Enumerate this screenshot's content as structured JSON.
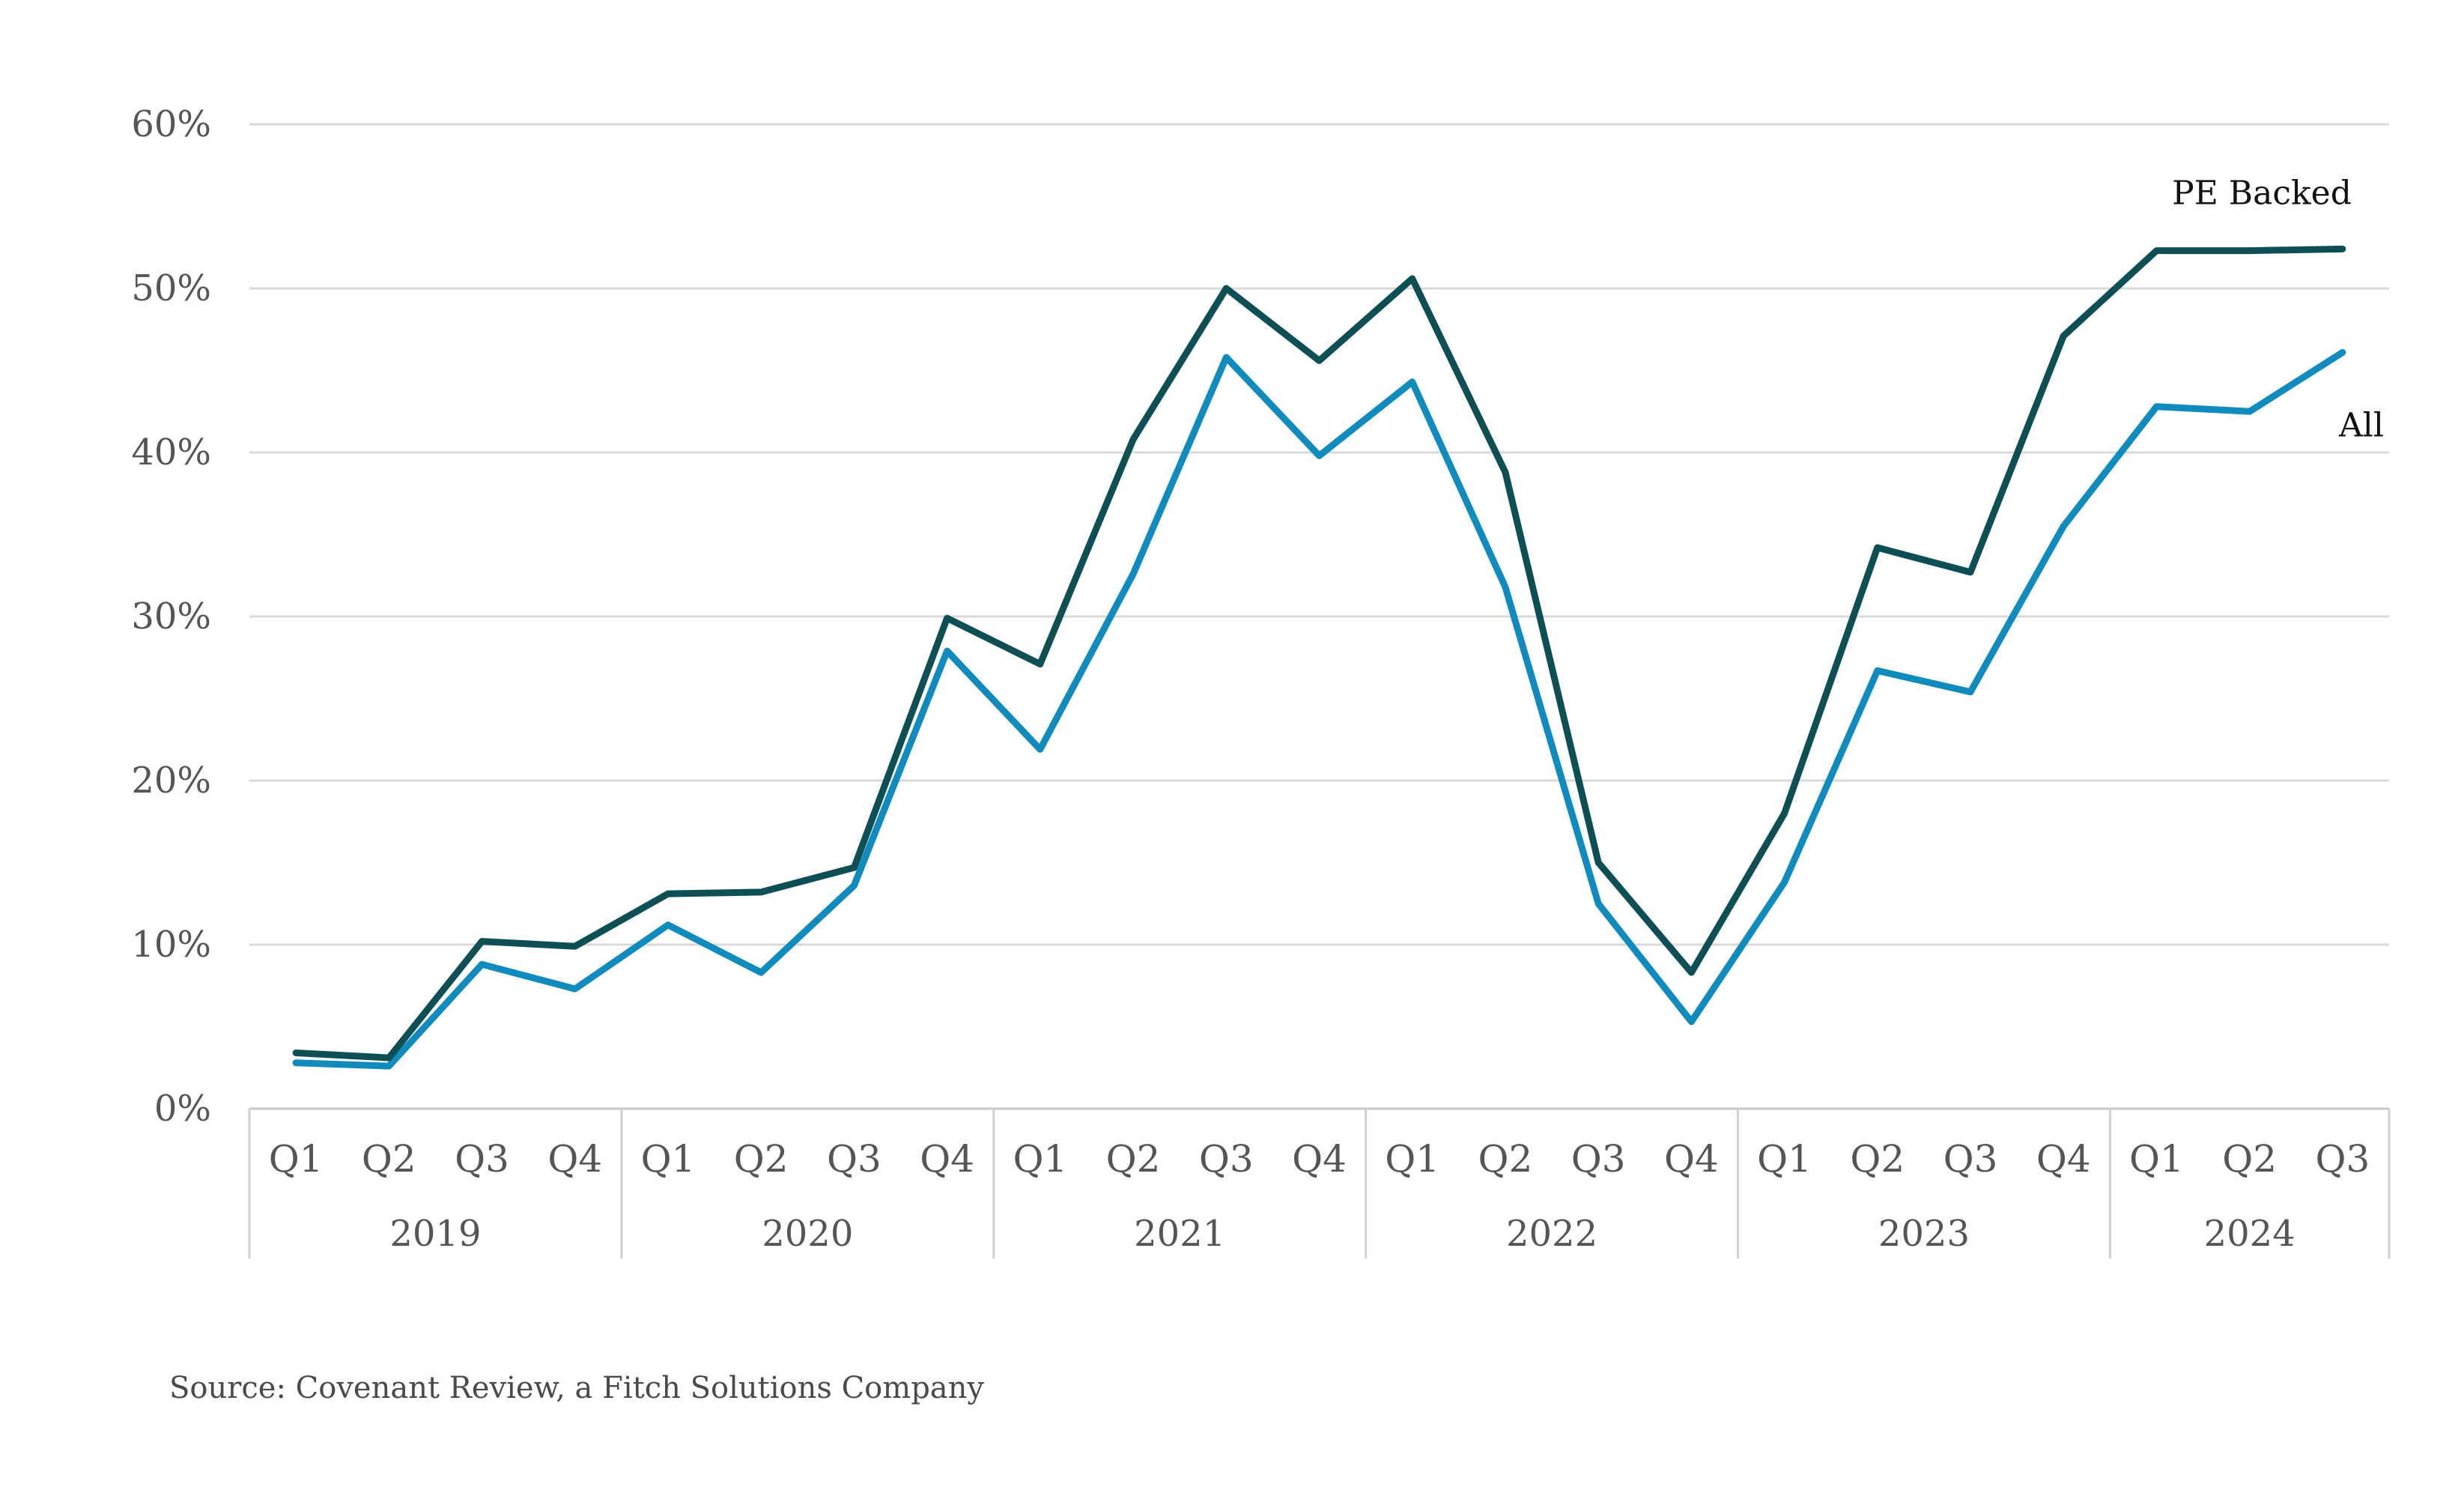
{
  "chart_data": {
    "type": "line",
    "title": "",
    "xlabel": "",
    "ylabel": "",
    "ylim": [
      0,
      60
    ],
    "y_ticks": [
      0,
      10,
      20,
      30,
      40,
      50,
      60
    ],
    "y_tick_labels": [
      "0%",
      "10%",
      "20%",
      "30%",
      "40%",
      "50%",
      "60%"
    ],
    "grid": true,
    "categories": [
      "Q1",
      "Q2",
      "Q3",
      "Q4",
      "Q1",
      "Q2",
      "Q3",
      "Q4",
      "Q1",
      "Q2",
      "Q3",
      "Q4",
      "Q1",
      "Q2",
      "Q3",
      "Q4",
      "Q1",
      "Q2",
      "Q3",
      "Q4",
      "Q1",
      "Q2",
      "Q3"
    ],
    "groups": [
      {
        "label": "2019",
        "count": 4
      },
      {
        "label": "2020",
        "count": 4
      },
      {
        "label": "2021",
        "count": 4
      },
      {
        "label": "2022",
        "count": 4
      },
      {
        "label": "2023",
        "count": 4
      },
      {
        "label": "2024",
        "count": 3
      }
    ],
    "series": [
      {
        "name": "PE Backed",
        "color": "#0d4f55",
        "values": [
          3.4,
          3.1,
          10.2,
          9.9,
          13.1,
          13.2,
          14.7,
          29.9,
          27.1,
          40.8,
          50.0,
          45.6,
          50.6,
          38.8,
          15.0,
          8.3,
          18.0,
          34.2,
          32.7,
          47.1,
          52.3,
          52.3,
          52.4
        ]
      },
      {
        "name": "All",
        "color": "#0f8bbd",
        "values": [
          2.8,
          2.6,
          8.8,
          7.3,
          11.2,
          8.3,
          13.6,
          27.9,
          21.9,
          32.6,
          45.8,
          39.8,
          44.3,
          31.8,
          12.5,
          5.3,
          13.8,
          26.7,
          25.4,
          35.5,
          42.8,
          42.5,
          46.1
        ]
      }
    ],
    "annotations": [
      "PE Backed",
      "All"
    ]
  },
  "source": "Source: Covenant Review, a Fitch Solutions Company"
}
